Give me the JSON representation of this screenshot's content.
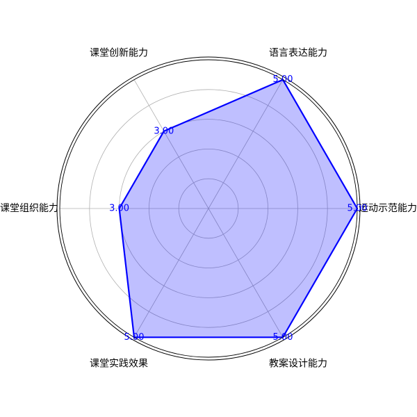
{
  "colors": {
    "series_line": "#0000ff",
    "series_fill": "#0000ff",
    "grid": "#b0b0b0",
    "outer_ring": "#000000",
    "value_label": "#0000ff",
    "axis_label": "#000000"
  },
  "chart_data": {
    "type": "radar",
    "categories": [
      "运动示范能力",
      "语言表达能力",
      "课堂创新能力",
      "课堂组织能力",
      "课堂实践效果",
      "教案设计能力"
    ],
    "values": [
      5,
      5,
      3,
      3,
      5,
      5
    ],
    "value_labels": [
      "5.00",
      "5.00",
      "3.00",
      "3.00",
      "5.00",
      "5.00"
    ],
    "rlim": [
      0,
      5
    ],
    "rgrid": [
      1,
      2,
      3,
      4
    ],
    "grid": true,
    "start_angle_deg": 0,
    "direction": "counterclockwise"
  }
}
